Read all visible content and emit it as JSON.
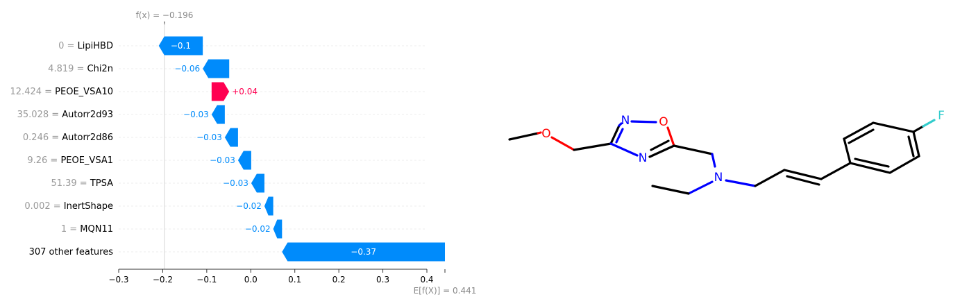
{
  "chart_data": {
    "type": "waterfall",
    "fx_label": "f(x) = −0.196",
    "fx_value": -0.196,
    "ex_label": "E[f(X)] = 0.441",
    "ex_value": 0.441,
    "xlim": [
      -0.3,
      0.4
    ],
    "x_ticks": [
      -0.3,
      -0.2,
      -0.1,
      0.0,
      0.1,
      0.2,
      0.3,
      0.4
    ],
    "x_tick_labels": [
      "−0.3",
      "−0.2",
      "−0.1",
      "0.0",
      "0.1",
      "0.2",
      "0.3",
      "0.4"
    ],
    "features": [
      {
        "value": "0",
        "eq": " = ",
        "name": "LipiHBD",
        "contribution": -0.1,
        "label": "−0.1"
      },
      {
        "value": "4.819",
        "eq": " = ",
        "name": "Chi2n",
        "contribution": -0.06,
        "label": "−0.06"
      },
      {
        "value": "12.424",
        "eq": " = ",
        "name": "PEOE_VSA10",
        "contribution": 0.04,
        "label": "+0.04"
      },
      {
        "value": "35.028",
        "eq": " = ",
        "name": "Autorr2d93",
        "contribution": -0.03,
        "label": "−0.03"
      },
      {
        "value": "0.246",
        "eq": " = ",
        "name": "Autorr2d86",
        "contribution": -0.03,
        "label": "−0.03"
      },
      {
        "value": "9.26",
        "eq": " = ",
        "name": "PEOE_VSA1",
        "contribution": -0.03,
        "label": "−0.03"
      },
      {
        "value": "51.39",
        "eq": " = ",
        "name": "TPSA",
        "contribution": -0.03,
        "label": "−0.03"
      },
      {
        "value": "0.002",
        "eq": " = ",
        "name": "InertShape",
        "contribution": -0.02,
        "label": "−0.02"
      },
      {
        "value": "1",
        "eq": " = ",
        "name": "MQN11",
        "contribution": -0.02,
        "label": "−0.02"
      },
      {
        "value": "",
        "eq": "",
        "name": "307 other features",
        "contribution": -0.37,
        "label": "−0.37"
      }
    ],
    "colors": {
      "negative": "#008bfb",
      "positive": "#ff0051"
    }
  },
  "molecule": {
    "atoms": {
      "o1": "O",
      "n1": "N",
      "o2": "O",
      "n2": "N",
      "n3": "N",
      "f": "F"
    }
  }
}
